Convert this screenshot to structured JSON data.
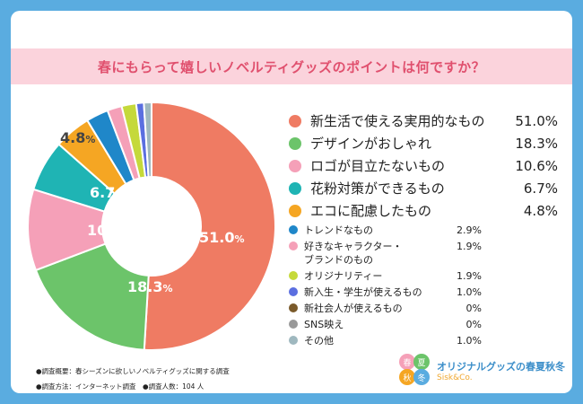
{
  "title": "春にもらって嬉しいノベルティグッズのポイントは何ですか？",
  "chart_data": {
    "type": "pie",
    "style": "donut",
    "title": "春にもらって嬉しいノベルティグッズのポイントは何ですか？",
    "unit": "%",
    "slices": [
      {
        "label": "新生活で使える実用的なもの",
        "value": 51.0,
        "value_text": "51.0",
        "display": "51.0%",
        "color": "#ef7b63",
        "major": true
      },
      {
        "label": "デザインがおしゃれ",
        "value": 18.3,
        "value_text": "18.3",
        "display": "18.3%",
        "color": "#6cc46a",
        "major": true
      },
      {
        "label": "ロゴが目立たないもの",
        "value": 10.6,
        "value_text": "10.6",
        "display": "10.6%",
        "color": "#f5a0b8",
        "major": true
      },
      {
        "label": "花粉対策ができるもの",
        "value": 6.7,
        "value_text": "6.7",
        "display": "6.7%",
        "color": "#1fb4b4",
        "major": true
      },
      {
        "label": "エコに配慮したもの",
        "value": 4.8,
        "value_text": "4.8",
        "display": "4.8%",
        "color": "#f5a623",
        "major": true
      },
      {
        "label": "トレンドなもの",
        "value": 2.9,
        "display": "2.9%",
        "color": "#1f87c9",
        "major": false
      },
      {
        "label": "好きなキャラクター・\nブランドのもの",
        "value": 1.9,
        "display": "1.9%",
        "color": "#f5a0b8",
        "major": false
      },
      {
        "label": "オリジナリティー",
        "value": 1.9,
        "display": "1.9%",
        "color": "#c5d93a",
        "major": false
      },
      {
        "label": "新入生・学生が使えるもの",
        "value": 1.0,
        "display": "1.0%",
        "color": "#5b6fe0",
        "major": false
      },
      {
        "label": "新社会人が使えるもの",
        "value": 0,
        "display": "0%",
        "color": "#7a5a2a",
        "major": false
      },
      {
        "label": "SNS映え",
        "value": 0,
        "display": "0%",
        "color": "#999999",
        "major": false
      },
      {
        "label": "その他",
        "value": 1.0,
        "display": "1.0%",
        "color": "#9fb8bf",
        "major": false
      }
    ]
  },
  "notes": {
    "line1": "●調査概要：春シーズンに欲しいノベルティグッズに関する調査",
    "line2": "●調査方法：インターネット調査　●調査人数：104 人"
  },
  "logo": {
    "circle_chars": [
      "春",
      "夏",
      "秋",
      "冬"
    ],
    "name": "オリジナルグッズの春夏秋冬",
    "sub": "Sisk&Co."
  }
}
